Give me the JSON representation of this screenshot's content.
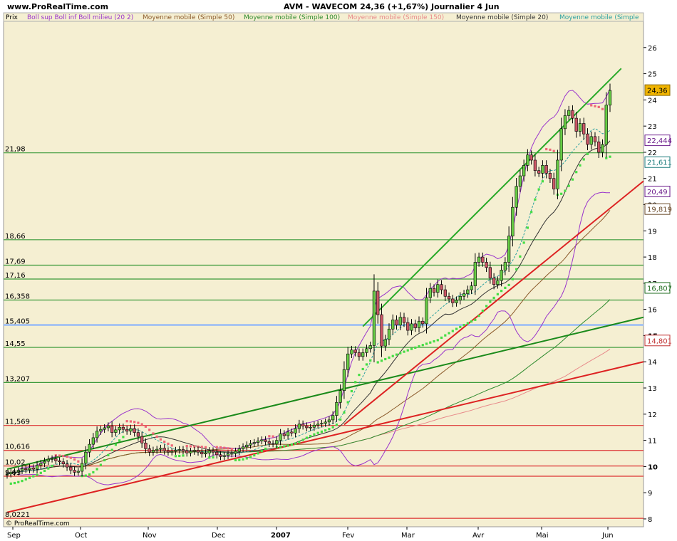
{
  "header": {
    "site": "www.ProRealTime.com",
    "title": "AVM - WAVECOM   24,36 (+1,67%)   Journalier  4 Jun"
  },
  "legend": {
    "prix_label": "Prix",
    "items": [
      {
        "label": "Boll sup Boll inf Boll milieu (20 2)",
        "color": "#9933cc"
      },
      {
        "label": "Moyenne mobile (Simple 50)",
        "color": "#8b5a2b"
      },
      {
        "label": "Moyenne mobile (Simple 100)",
        "color": "#2e8b2e"
      },
      {
        "label": "Moyenne mobile (Simple 150)",
        "color": "#e88a8a"
      },
      {
        "label": "Moyenne mobile (Simple 20)",
        "color": "#333333"
      },
      {
        "label": "Moyenne mobile (Simple",
        "color": "#2aa0a0"
      }
    ]
  },
  "watermark": "© ProRealTime.com",
  "chart_data": {
    "type": "candlestick",
    "y_axis": {
      "min": 7.7,
      "max": 27,
      "ticks": [
        8,
        9,
        10,
        11,
        12,
        13,
        14,
        15,
        16,
        17,
        18,
        19,
        20,
        21,
        22,
        23,
        24,
        25,
        26
      ]
    },
    "x_axis": {
      "labels": [
        "Sep",
        "Oct",
        "Nov",
        "Dec",
        "2007",
        "Fev",
        "Mar",
        "Avr",
        "Mai",
        "Jun"
      ]
    },
    "horizontal_levels": [
      {
        "label": "21,98",
        "value": 21.98,
        "color": "#3a9a3a"
      },
      {
        "label": "18,66",
        "value": 18.66,
        "color": "#3a9a3a"
      },
      {
        "label": "17,69",
        "value": 17.69,
        "color": "#3a9a3a"
      },
      {
        "label": "17,16",
        "value": 17.16,
        "color": "#3a9a3a"
      },
      {
        "label": "16,358",
        "value": 16.358,
        "color": "#3a9a3a"
      },
      {
        "label": "15,405",
        "value": 15.405,
        "color": "#a8c4f0"
      },
      {
        "label": "14,55",
        "value": 14.55,
        "color": "#3a9a3a"
      },
      {
        "label": "13,207",
        "value": 13.207,
        "color": "#3a9a3a"
      },
      {
        "label": "11,569",
        "value": 11.569,
        "color": "#dd3333"
      },
      {
        "label": "10,616",
        "value": 10.616,
        "color": "#dd3333"
      },
      {
        "label": "10,02",
        "value": 10.02,
        "color": "#dd3333"
      },
      {
        "label": "9,63",
        "value": 9.63,
        "color": "#dd3333"
      },
      {
        "label": "8,0221",
        "value": 8.0221,
        "color": "#dd3333"
      }
    ],
    "right_badges": [
      {
        "label": "24,36",
        "value": 24.36,
        "bg": "#f0b400",
        "fg": "#000000",
        "border": "#8a6a00"
      },
      {
        "label": "22,444",
        "value": 22.444,
        "bg": "#ffffff",
        "fg": "#6a1a8a",
        "border": "#6a1a8a"
      },
      {
        "label": "21,611",
        "value": 21.611,
        "bg": "#ffffff",
        "fg": "#1a7a7a",
        "border": "#1a7a7a"
      },
      {
        "label": "20,49",
        "value": 20.49,
        "bg": "#ffffff",
        "fg": "#6a1a8a",
        "border": "#6a1a8a"
      },
      {
        "label": "19,819",
        "value": 19.819,
        "bg": "#ffffff",
        "fg": "#6a4a2a",
        "border": "#6a4a2a"
      },
      {
        "label": "16,807",
        "value": 16.807,
        "bg": "#ffffff",
        "fg": "#1a6a1a",
        "border": "#1a6a1a"
      },
      {
        "label": "14,801",
        "value": 14.801,
        "bg": "#ffffff",
        "fg": "#c03030",
        "border": "#c03030"
      }
    ],
    "close": [
      9.72,
      9.78,
      9.8,
      9.85,
      9.92,
      9.88,
      9.95,
      9.9,
      10.05,
      10.12,
      10.2,
      10.28,
      10.3,
      10.22,
      10.18,
      10.1,
      9.98,
      9.86,
      9.78,
      9.82,
      10.12,
      10.55,
      10.85,
      11.1,
      11.35,
      11.42,
      11.48,
      11.55,
      11.3,
      11.4,
      11.5,
      11.42,
      11.35,
      11.45,
      11.3,
      11.15,
      10.9,
      10.68,
      10.55,
      10.62,
      10.66,
      10.7,
      10.6,
      10.55,
      10.58,
      10.62,
      10.65,
      10.6,
      10.52,
      10.58,
      10.62,
      10.55,
      10.48,
      10.52,
      10.6,
      10.55,
      10.45,
      10.38,
      10.42,
      10.48,
      10.5,
      10.58,
      10.68,
      10.75,
      10.82,
      10.88,
      10.92,
      10.98,
      11.02,
      10.95,
      10.88,
      10.86,
      11.0,
      11.25,
      11.18,
      11.32,
      11.28,
      11.45,
      11.62,
      11.55,
      11.48,
      11.5,
      11.58,
      11.62,
      11.65,
      11.7,
      11.78,
      11.95,
      12.45,
      12.9,
      13.7,
      14.3,
      14.45,
      14.35,
      14.2,
      14.35,
      14.5,
      14.62,
      16.7,
      15.8,
      14.6,
      14.85,
      15.25,
      15.6,
      15.4,
      15.7,
      15.5,
      15.2,
      15.45,
      15.3,
      15.55,
      15.45,
      16.45,
      16.8,
      16.65,
      16.95,
      16.75,
      16.5,
      16.4,
      16.25,
      16.35,
      16.5,
      16.6,
      16.75,
      16.9,
      17.8,
      18.0,
      17.8,
      17.6,
      17.2,
      16.95,
      17.1,
      17.5,
      17.8,
      18.8,
      19.9,
      20.7,
      21.1,
      21.5,
      21.9,
      21.7,
      21.3,
      21.2,
      21.5,
      21.2,
      21.0,
      20.6,
      21.7,
      22.9,
      23.4,
      23.6,
      23.3,
      22.8,
      23.1,
      22.7,
      22.3,
      22.6,
      22.4,
      22.0,
      22.3,
      23.8,
      24.36
    ],
    "annotation_lines": [
      {
        "from": [
          0,
          9.9
        ],
        "to": [
          170,
          15.7
        ],
        "color": "#1a8a1a",
        "width": 2
      },
      {
        "from": [
          0,
          8.25
        ],
        "to": [
          170,
          14.0
        ],
        "color": "#dd2222",
        "width": 2
      },
      {
        "from": [
          95,
          15.35
        ],
        "to": [
          164,
          25.2
        ],
        "color": "#2aaa2a",
        "width": 2
      },
      {
        "from": [
          90,
          11.6
        ],
        "to": [
          170,
          20.9
        ],
        "color": "#dd2222",
        "width": 2
      }
    ]
  }
}
